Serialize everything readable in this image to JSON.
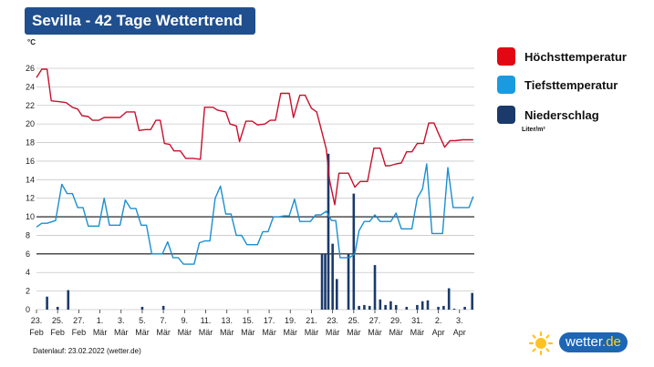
{
  "header": {
    "title": "Sevilla - 42 Tage Wettertrend"
  },
  "legend": {
    "items": [
      {
        "label": "Höchsttemperatur",
        "color": "#e30613"
      },
      {
        "label": "Tiefsttemperatur",
        "color": "#1a9be0"
      },
      {
        "label": "Niederschlag",
        "color": "#1b3a6b"
      }
    ],
    "unit_note": "Liter/m²"
  },
  "footer": {
    "text": "Datenlauf: 23.02.2022 (wetter.de)"
  },
  "logo": {
    "word": "wetter",
    "tld": ".de"
  },
  "chart_data": {
    "type": "line",
    "yunit": "°C",
    "ylim": [
      0,
      26
    ],
    "ytick_values": [
      0,
      2,
      4,
      6,
      8,
      10,
      12,
      14,
      16,
      18,
      20,
      22,
      24,
      26
    ],
    "highlight_lines": [
      6,
      10
    ],
    "x_range": [
      23.0,
      64.4
    ],
    "x_ticks": [
      {
        "x": 23,
        "day": "23.",
        "month": "Feb"
      },
      {
        "x": 25,
        "day": "25.",
        "month": "Feb"
      },
      {
        "x": 27,
        "day": "27.",
        "month": "Feb"
      },
      {
        "x": 29,
        "day": "1.",
        "month": "Mär"
      },
      {
        "x": 31,
        "day": "3.",
        "month": "Mär"
      },
      {
        "x": 33,
        "day": "5.",
        "month": "Mär"
      },
      {
        "x": 35,
        "day": "7.",
        "month": "Mär"
      },
      {
        "x": 37,
        "day": "9.",
        "month": "Mär"
      },
      {
        "x": 39,
        "day": "11.",
        "month": "Mär"
      },
      {
        "x": 41,
        "day": "13.",
        "month": "Mär"
      },
      {
        "x": 43,
        "day": "15.",
        "month": "Mär"
      },
      {
        "x": 45,
        "day": "17.",
        "month": "Mär"
      },
      {
        "x": 47,
        "day": "19.",
        "month": "Mär"
      },
      {
        "x": 49,
        "day": "21.",
        "month": "Mär"
      },
      {
        "x": 51,
        "day": "23.",
        "month": "Mär"
      },
      {
        "x": 53,
        "day": "25.",
        "month": "Mär"
      },
      {
        "x": 55,
        "day": "27.",
        "month": "Mär"
      },
      {
        "x": 57,
        "day": "29.",
        "month": "Mär"
      },
      {
        "x": 59,
        "day": "31.",
        "month": "Mär"
      },
      {
        "x": 61,
        "day": "2.",
        "month": "Apr"
      },
      {
        "x": 63,
        "day": "3.",
        "month": "Apr"
      }
    ],
    "series": [
      {
        "name": "Höchsttemperatur",
        "color": "#c8102e",
        "points": [
          [
            23.0,
            25.0
          ],
          [
            23.5,
            25.9
          ],
          [
            24.0,
            25.9
          ],
          [
            24.4,
            22.5
          ],
          [
            25.2,
            22.4
          ],
          [
            25.8,
            22.3
          ],
          [
            26.4,
            21.8
          ],
          [
            26.9,
            21.6
          ],
          [
            27.3,
            20.9
          ],
          [
            27.9,
            20.8
          ],
          [
            28.3,
            20.4
          ],
          [
            28.9,
            20.4
          ],
          [
            29.4,
            20.7
          ],
          [
            30.0,
            20.7
          ],
          [
            30.9,
            20.7
          ],
          [
            31.5,
            21.3
          ],
          [
            32.3,
            21.3
          ],
          [
            32.7,
            19.3
          ],
          [
            33.3,
            19.4
          ],
          [
            33.8,
            19.4
          ],
          [
            34.3,
            20.4
          ],
          [
            34.7,
            20.4
          ],
          [
            35.1,
            17.9
          ],
          [
            35.6,
            17.8
          ],
          [
            36.0,
            17.1
          ],
          [
            36.6,
            17.1
          ],
          [
            37.1,
            16.3
          ],
          [
            37.8,
            16.3
          ],
          [
            38.5,
            16.2
          ],
          [
            38.9,
            21.8
          ],
          [
            39.7,
            21.8
          ],
          [
            40.1,
            21.5
          ],
          [
            40.9,
            21.3
          ],
          [
            41.3,
            20.0
          ],
          [
            41.9,
            19.8
          ],
          [
            42.2,
            18.1
          ],
          [
            42.8,
            20.3
          ],
          [
            43.4,
            20.3
          ],
          [
            43.9,
            19.9
          ],
          [
            44.6,
            20.0
          ],
          [
            45.1,
            20.4
          ],
          [
            45.6,
            20.4
          ],
          [
            46.1,
            23.3
          ],
          [
            46.9,
            23.3
          ],
          [
            47.3,
            20.7
          ],
          [
            47.9,
            23.1
          ],
          [
            48.4,
            23.1
          ],
          [
            49.0,
            21.7
          ],
          [
            49.5,
            21.3
          ],
          [
            50.0,
            19.1
          ],
          [
            50.4,
            17.3
          ],
          [
            50.7,
            14.0
          ],
          [
            51.2,
            11.3
          ],
          [
            51.6,
            14.7
          ],
          [
            52.5,
            14.7
          ],
          [
            53.1,
            13.2
          ],
          [
            53.6,
            13.8
          ],
          [
            54.3,
            13.8
          ],
          [
            54.9,
            17.4
          ],
          [
            55.5,
            17.4
          ],
          [
            56.0,
            15.5
          ],
          [
            56.4,
            15.5
          ],
          [
            57.0,
            15.7
          ],
          [
            57.5,
            15.8
          ],
          [
            58.0,
            17.0
          ],
          [
            58.5,
            17.0
          ],
          [
            59.0,
            17.9
          ],
          [
            59.6,
            17.9
          ],
          [
            60.1,
            20.1
          ],
          [
            60.6,
            20.1
          ],
          [
            61.0,
            19.0
          ],
          [
            61.6,
            17.5
          ],
          [
            62.1,
            18.2
          ],
          [
            62.6,
            18.2
          ],
          [
            63.3,
            18.3
          ],
          [
            64.3,
            18.3
          ]
        ]
      },
      {
        "name": "Tiefsttemperatur",
        "color": "#1a8fd0",
        "points": [
          [
            23.0,
            8.9
          ],
          [
            23.5,
            9.3
          ],
          [
            24.0,
            9.3
          ],
          [
            24.8,
            9.6
          ],
          [
            25.4,
            13.5
          ],
          [
            25.9,
            12.5
          ],
          [
            26.4,
            12.5
          ],
          [
            26.9,
            11.0
          ],
          [
            27.4,
            11.0
          ],
          [
            27.9,
            9.0
          ],
          [
            28.4,
            9.0
          ],
          [
            28.9,
            9.0
          ],
          [
            29.4,
            12.0
          ],
          [
            29.9,
            9.1
          ],
          [
            30.4,
            9.1
          ],
          [
            30.9,
            9.1
          ],
          [
            31.4,
            11.8
          ],
          [
            31.9,
            10.9
          ],
          [
            32.4,
            10.9
          ],
          [
            32.9,
            9.1
          ],
          [
            33.4,
            9.1
          ],
          [
            33.9,
            6.0
          ],
          [
            34.4,
            6.0
          ],
          [
            34.9,
            6.0
          ],
          [
            35.4,
            7.3
          ],
          [
            35.9,
            5.6
          ],
          [
            36.4,
            5.6
          ],
          [
            36.9,
            4.9
          ],
          [
            37.4,
            4.9
          ],
          [
            37.9,
            4.9
          ],
          [
            38.4,
            7.2
          ],
          [
            38.9,
            7.4
          ],
          [
            39.4,
            7.4
          ],
          [
            39.9,
            12.0
          ],
          [
            40.4,
            13.3
          ],
          [
            40.9,
            10.3
          ],
          [
            41.4,
            10.3
          ],
          [
            41.9,
            8.0
          ],
          [
            42.4,
            8.0
          ],
          [
            42.9,
            7.0
          ],
          [
            43.4,
            7.0
          ],
          [
            43.9,
            7.0
          ],
          [
            44.4,
            8.4
          ],
          [
            44.9,
            8.4
          ],
          [
            45.4,
            10.0
          ],
          [
            45.9,
            10.0
          ],
          [
            46.4,
            10.1
          ],
          [
            46.9,
            10.1
          ],
          [
            47.4,
            11.9
          ],
          [
            47.9,
            9.5
          ],
          [
            48.4,
            9.5
          ],
          [
            48.9,
            9.5
          ],
          [
            49.4,
            10.2
          ],
          [
            49.9,
            10.2
          ],
          [
            50.4,
            10.6
          ],
          [
            50.9,
            9.6
          ],
          [
            51.3,
            9.6
          ],
          [
            51.7,
            5.6
          ],
          [
            52.1,
            5.6
          ],
          [
            52.6,
            5.6
          ],
          [
            53.1,
            6.0
          ],
          [
            53.5,
            8.5
          ],
          [
            54.0,
            9.5
          ],
          [
            54.5,
            9.5
          ],
          [
            55.0,
            10.2
          ],
          [
            55.5,
            9.5
          ],
          [
            56.0,
            9.5
          ],
          [
            56.5,
            9.5
          ],
          [
            57.0,
            10.4
          ],
          [
            57.5,
            8.7
          ],
          [
            58.0,
            8.7
          ],
          [
            58.5,
            8.7
          ],
          [
            59.0,
            12.0
          ],
          [
            59.5,
            13.0
          ],
          [
            59.9,
            15.7
          ],
          [
            60.4,
            8.2
          ],
          [
            60.9,
            8.2
          ],
          [
            61.4,
            8.2
          ],
          [
            61.9,
            15.3
          ],
          [
            62.4,
            11.0
          ],
          [
            62.9,
            11.0
          ],
          [
            63.4,
            11.0
          ],
          [
            63.9,
            11.0
          ],
          [
            64.3,
            12.2
          ]
        ]
      }
    ],
    "bars": {
      "name": "Niederschlag",
      "color": "#1b3a6b",
      "points": [
        [
          24.0,
          1.4
        ],
        [
          25.0,
          0.3
        ],
        [
          26.0,
          2.1
        ],
        [
          33.0,
          0.3
        ],
        [
          35.0,
          0.4
        ],
        [
          50.0,
          6.0
        ],
        [
          50.3,
          6.0
        ],
        [
          50.6,
          16.8
        ],
        [
          51.0,
          7.1
        ],
        [
          51.4,
          3.3
        ],
        [
          52.5,
          6.0
        ],
        [
          53.0,
          12.5
        ],
        [
          53.5,
          0.4
        ],
        [
          54.0,
          0.5
        ],
        [
          54.5,
          0.4
        ],
        [
          55.0,
          4.8
        ],
        [
          55.5,
          1.1
        ],
        [
          56.0,
          0.5
        ],
        [
          56.5,
          0.9
        ],
        [
          57.0,
          0.5
        ],
        [
          58.0,
          0.3
        ],
        [
          59.0,
          0.5
        ],
        [
          59.5,
          0.9
        ],
        [
          60.0,
          1.0
        ],
        [
          61.0,
          0.3
        ],
        [
          61.5,
          0.4
        ],
        [
          62.0,
          2.3
        ],
        [
          62.5,
          0.1
        ],
        [
          63.5,
          0.3
        ],
        [
          64.2,
          1.8
        ]
      ]
    }
  }
}
